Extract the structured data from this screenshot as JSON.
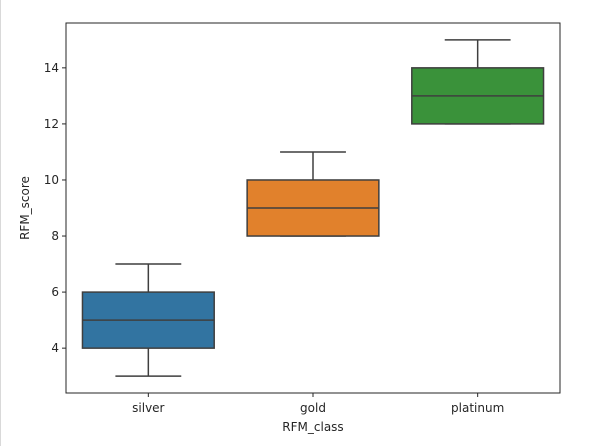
{
  "chart_data": {
    "type": "box",
    "categories": [
      "silver",
      "gold",
      "platinum"
    ],
    "xlabel": "RFM_class",
    "ylabel": "RFM_score",
    "ylim": [
      2.4,
      15.6
    ],
    "yticks": [
      4,
      6,
      8,
      10,
      12,
      14
    ],
    "grid": false,
    "boxes": [
      {
        "category": "silver",
        "whisker_low": 3,
        "q1": 4,
        "median": 5,
        "q3": 6,
        "whisker_high": 7,
        "color": "#3274a1"
      },
      {
        "category": "gold",
        "whisker_low": 8,
        "q1": 8,
        "median": 9,
        "q3": 10,
        "whisker_high": 11,
        "color": "#e1812c"
      },
      {
        "category": "platinum",
        "whisker_low": 12,
        "q1": 12,
        "median": 13,
        "q3": 14,
        "whisker_high": 15,
        "color": "#3a923a"
      }
    ]
  }
}
